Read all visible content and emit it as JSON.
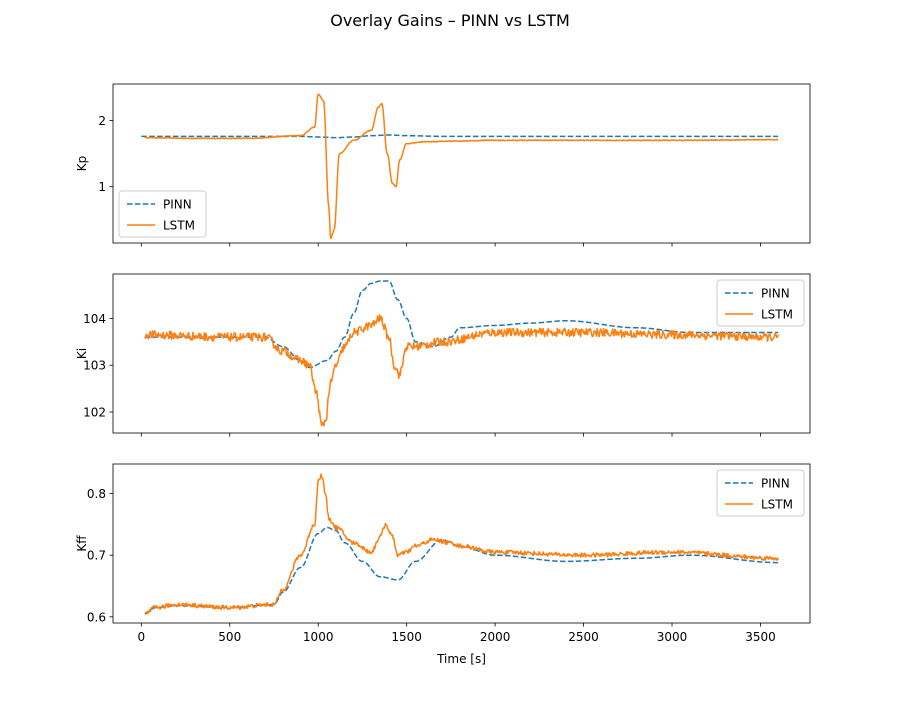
{
  "figure": {
    "title": "Overlay Gains – PINN vs LSTM"
  },
  "colors": {
    "pinn": "#1f77b4",
    "lstm": "#ff7f0e",
    "axis": "#000000"
  },
  "chart_data": [
    {
      "type": "line",
      "ylabel": "Kp",
      "xlabel": "",
      "xlim": [
        -160,
        3780
      ],
      "ylim": [
        0.15,
        2.55
      ],
      "yticks": [
        1,
        2
      ],
      "ytick_labels": [
        "1",
        "2"
      ],
      "xticks": [
        0,
        500,
        1000,
        1500,
        2000,
        2500,
        3000,
        3500
      ],
      "xtick_labels": [],
      "legend": "lower-left",
      "noise": 0.006,
      "series": [
        {
          "name": "PINN",
          "style": "dashed",
          "noise": 0,
          "x": [
            0,
            400,
            700,
            900,
            1000,
            1100,
            1200,
            1300,
            1400,
            1500,
            1700,
            2000,
            3000,
            3600
          ],
          "y": [
            1.76,
            1.76,
            1.76,
            1.76,
            1.75,
            1.74,
            1.75,
            1.77,
            1.78,
            1.77,
            1.76,
            1.76,
            1.76,
            1.76
          ]
        },
        {
          "name": "LSTM",
          "style": "solid",
          "noise": 0.006,
          "x": [
            20,
            300,
            600,
            900,
            980,
            1000,
            1030,
            1060,
            1070,
            1090,
            1120,
            1200,
            1300,
            1340,
            1360,
            1390,
            1420,
            1440,
            1460,
            1500,
            1600,
            2000,
            2500,
            3000,
            3600
          ],
          "y": [
            1.74,
            1.73,
            1.73,
            1.77,
            1.9,
            2.4,
            2.3,
            0.7,
            0.22,
            0.35,
            1.5,
            1.7,
            1.85,
            2.2,
            2.25,
            1.5,
            1.05,
            1.0,
            1.4,
            1.65,
            1.68,
            1.7,
            1.7,
            1.7,
            1.71
          ]
        }
      ]
    },
    {
      "type": "line",
      "ylabel": "Ki",
      "xlabel": "",
      "xlim": [
        -160,
        3780
      ],
      "ylim": [
        101.55,
        104.95
      ],
      "yticks": [
        102,
        103,
        104
      ],
      "ytick_labels": [
        "102",
        "103",
        "104"
      ],
      "xticks": [
        0,
        500,
        1000,
        1500,
        2000,
        2500,
        3000,
        3500
      ],
      "xtick_labels": [],
      "legend": "upper-right",
      "series": [
        {
          "name": "PINN",
          "style": "dashed",
          "noise": 0,
          "x": [
            20,
            500,
            700,
            800,
            900,
            950,
            1050,
            1100,
            1150,
            1200,
            1250,
            1300,
            1350,
            1400,
            1450,
            1500,
            1550,
            1650,
            1750,
            1800,
            2000,
            2200,
            2400,
            2800,
            3100,
            3600
          ],
          "y": [
            103.6,
            103.6,
            103.6,
            103.4,
            103.1,
            102.95,
            103.1,
            103.3,
            103.6,
            104.1,
            104.6,
            104.75,
            104.8,
            104.8,
            104.4,
            104.0,
            103.5,
            103.4,
            103.6,
            103.8,
            103.85,
            103.9,
            103.95,
            103.8,
            103.7,
            103.7
          ]
        },
        {
          "name": "LSTM",
          "style": "solid",
          "noise": 0.09,
          "x": [
            20,
            500,
            700,
            800,
            900,
            950,
            990,
            1020,
            1040,
            1070,
            1100,
            1150,
            1200,
            1300,
            1350,
            1400,
            1430,
            1460,
            1500,
            1550,
            1700,
            2000,
            2500,
            3000,
            3600
          ],
          "y": [
            103.65,
            103.6,
            103.6,
            103.3,
            103.1,
            103.0,
            102.4,
            101.7,
            101.8,
            102.6,
            103.0,
            103.4,
            103.7,
            103.85,
            104.0,
            103.6,
            103.0,
            102.8,
            103.4,
            103.4,
            103.5,
            103.7,
            103.7,
            103.65,
            103.6
          ]
        }
      ]
    },
    {
      "type": "line",
      "ylabel": "Kff",
      "xlabel": "Time [s]",
      "xlim": [
        -160,
        3780
      ],
      "ylim": [
        0.59,
        0.848
      ],
      "yticks": [
        0.6,
        0.7,
        0.8
      ],
      "ytick_labels": [
        "0.6",
        "0.7",
        "0.8"
      ],
      "xticks": [
        0,
        500,
        1000,
        1500,
        2000,
        2500,
        3000,
        3500
      ],
      "xtick_labels": [
        "0",
        "500",
        "1000",
        "1500",
        "2000",
        "2500",
        "3000",
        "3500"
      ],
      "legend": "upper-right",
      "series": [
        {
          "name": "PINN",
          "style": "dashed",
          "noise": 0,
          "x": [
            20,
            80,
            200,
            500,
            750,
            800,
            900,
            1000,
            1050,
            1100,
            1150,
            1250,
            1350,
            1450,
            1550,
            1700,
            1800,
            2000,
            2400,
            2800,
            3100,
            3600
          ],
          "y": [
            0.605,
            0.615,
            0.618,
            0.615,
            0.62,
            0.64,
            0.68,
            0.735,
            0.745,
            0.74,
            0.72,
            0.69,
            0.665,
            0.66,
            0.69,
            0.725,
            0.715,
            0.7,
            0.69,
            0.695,
            0.7,
            0.688
          ]
        },
        {
          "name": "LSTM",
          "style": "solid",
          "noise": 0.0035,
          "x": [
            20,
            80,
            200,
            500,
            750,
            800,
            900,
            980,
            1000,
            1020,
            1040,
            1060,
            1100,
            1200,
            1300,
            1350,
            1380,
            1420,
            1450,
            1500,
            1550,
            1650,
            1750,
            1800,
            2000,
            2500,
            3000,
            3600
          ],
          "y": [
            0.605,
            0.615,
            0.62,
            0.615,
            0.62,
            0.645,
            0.7,
            0.75,
            0.82,
            0.83,
            0.8,
            0.76,
            0.745,
            0.72,
            0.705,
            0.73,
            0.75,
            0.73,
            0.7,
            0.705,
            0.715,
            0.725,
            0.72,
            0.715,
            0.705,
            0.7,
            0.705,
            0.695
          ]
        }
      ]
    }
  ]
}
